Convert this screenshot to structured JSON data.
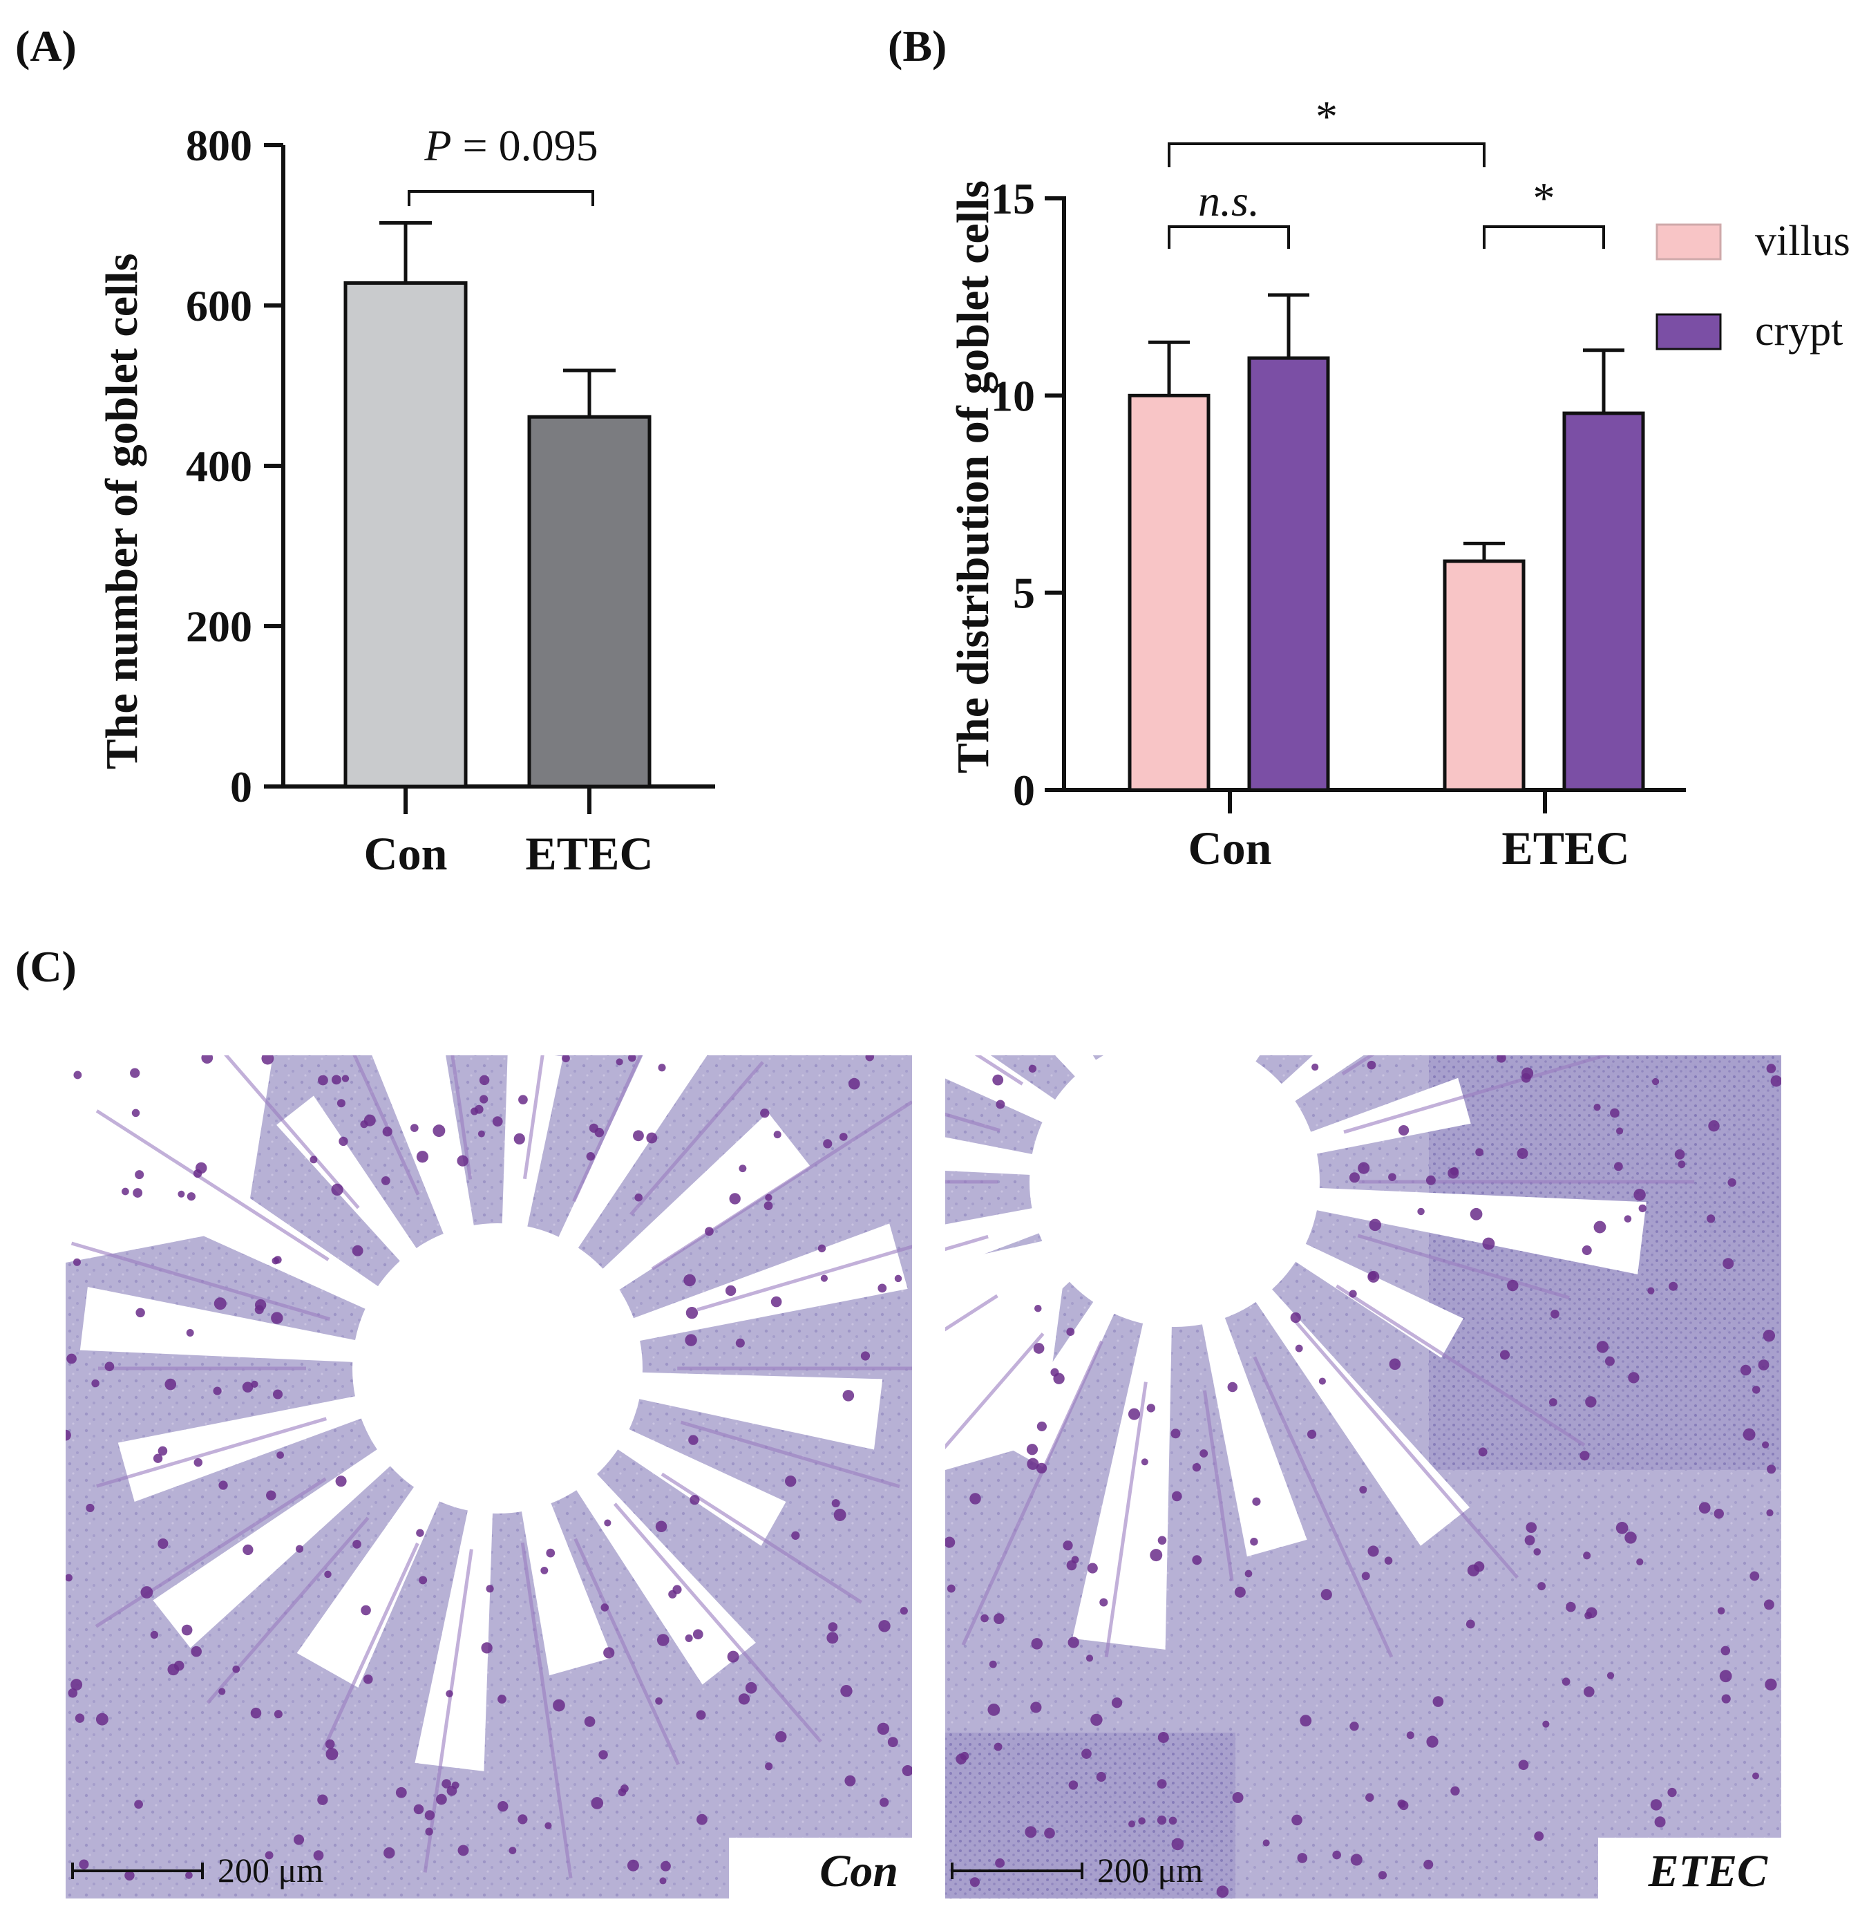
{
  "labels": {
    "a": "(A)",
    "b": "(B)",
    "c": "(C)"
  },
  "colors": {
    "con_bar": "#c9cbcd",
    "etec_bar": "#7b7c80",
    "villus": "#f8c5c6",
    "crypt": "#7b4fa5",
    "stroke": "#111111",
    "tissue_bg": "#b9b2d6",
    "tissue_dark": "#8a6fb8",
    "goblet": "#6a2d8a"
  },
  "chart_data": [
    {
      "type": "bar",
      "title": "",
      "xlabel": "",
      "ylabel": "The number of goblet cells",
      "categories": [
        "Con",
        "ETEC"
      ],
      "values": [
        628,
        461
      ],
      "errors": [
        75,
        58
      ],
      "ylim": [
        0,
        800
      ],
      "yticks": [
        "0",
        "200",
        "400",
        "600",
        "800"
      ],
      "annotations": [
        {
          "text_italic": "P",
          "text": " = 0.095",
          "between": [
            "Con",
            "ETEC"
          ]
        }
      ]
    },
    {
      "type": "bar",
      "title": "",
      "xlabel": "",
      "ylabel": "The distribution of goblet cells",
      "categories": [
        "Con",
        "ETEC"
      ],
      "series": [
        {
          "name": "villus",
          "values": [
            10.0,
            5.8
          ],
          "errors": [
            1.35,
            0.45
          ]
        },
        {
          "name": "crypt",
          "values": [
            10.95,
            9.55
          ],
          "errors": [
            1.6,
            1.6
          ]
        }
      ],
      "ylim": [
        0,
        15
      ],
      "yticks": [
        "0",
        "5",
        "10",
        "15"
      ],
      "legend": "right",
      "annotations": [
        {
          "text": "n.s.",
          "italic": true,
          "between": [
            "Con villus",
            "Con crypt"
          ]
        },
        {
          "text": "*",
          "between": [
            "ETEC villus",
            "ETEC crypt"
          ]
        },
        {
          "text": "*",
          "between": [
            "Con villus",
            "ETEC villus"
          ]
        }
      ]
    }
  ],
  "micrographs": [
    {
      "caption": "Con",
      "scale": "200 μm"
    },
    {
      "caption": "ETEC",
      "scale": "200 μm"
    }
  ]
}
